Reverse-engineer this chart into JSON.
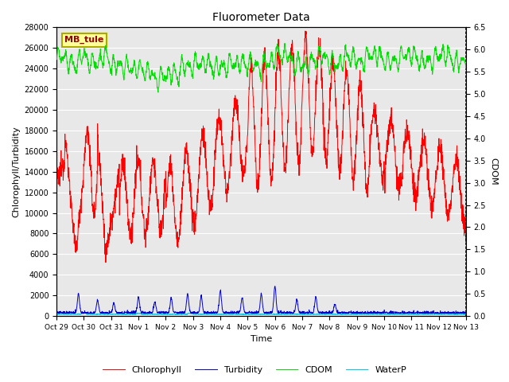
{
  "title": "Fluorometer Data",
  "xlabel": "Time",
  "ylabel_left": "Chlorophyll/Turbidity",
  "ylabel_right": "CDOM",
  "station_label": "MB_tule",
  "ylim_left": [
    0,
    28000
  ],
  "ylim_right": [
    0.0,
    6.5
  ],
  "yticks_left": [
    0,
    2000,
    4000,
    6000,
    8000,
    10000,
    12000,
    14000,
    16000,
    18000,
    20000,
    22000,
    24000,
    26000,
    28000
  ],
  "yticks_right": [
    0.0,
    0.5,
    1.0,
    1.5,
    2.0,
    2.5,
    3.0,
    3.5,
    4.0,
    4.5,
    5.0,
    5.5,
    6.0,
    6.5
  ],
  "xtick_labels": [
    "Oct 29",
    "Oct 30",
    "Oct 31",
    "Nov 1",
    "Nov 2",
    "Nov 3",
    "Nov 4",
    "Nov 5",
    "Nov 6",
    "Nov 7",
    "Nov 8",
    "Nov 9",
    "Nov 10",
    "Nov 11",
    "Nov 12",
    "Nov 13"
  ],
  "colors": {
    "chlorophyll": "#ff0000",
    "turbidity": "#0000cc",
    "cdom": "#00dd00",
    "waterp": "#00ccee",
    "background": "#e8e8e8",
    "grid": "#ffffff",
    "station_box_bg": "#ffff99",
    "station_box_edge": "#aaaa00"
  },
  "legend_entries": [
    "Chlorophyll",
    "Turbidity",
    "CDOM",
    "WaterP"
  ],
  "num_points": 2000
}
